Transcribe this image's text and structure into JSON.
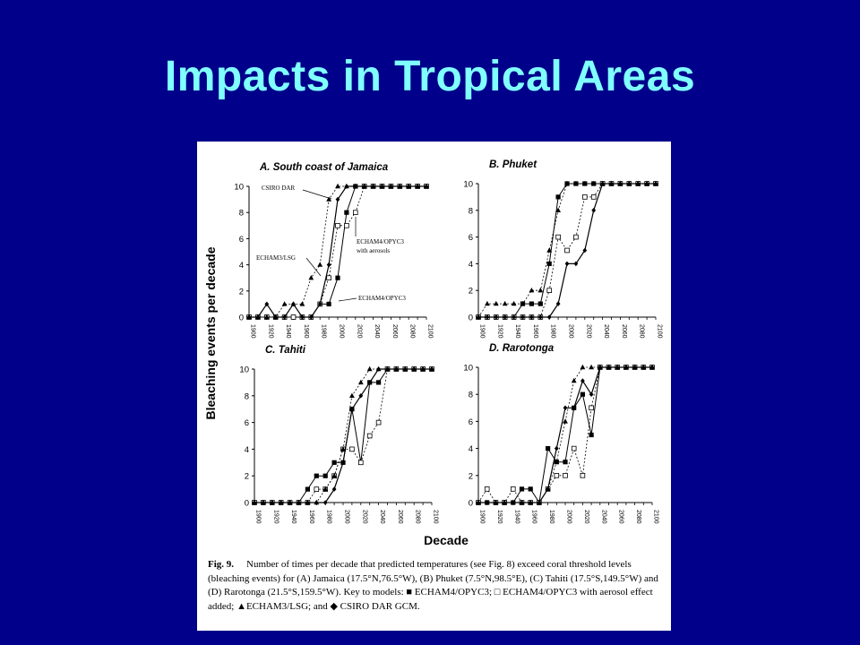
{
  "slide": {
    "title": "Impacts in Tropical Areas"
  },
  "figure": {
    "y_axis_title": "Bleaching events per decade",
    "x_axis_title": "Decade",
    "caption": {
      "label": "Fig. 9.",
      "text": "Number of times per decade that predicted temperatures (see Fig. 8) exceed coral threshold levels (bleaching events) for (A) Jamaica (17.5°N,76.5°W), (B) Phuket (7.5°N,98.5°E), (C) Tahiti (17.5°S,149.5°W) and (D) Rarotonga (21.5°S,159.5°W). Key to models: ■ ECHAM4/OPYC3; □ ECHAM4/OPYC3 with aerosol effect added; ▲ECHAM3/LSG; and ◆ CSIRO DAR GCM."
    }
  },
  "chart_data": [
    {
      "type": "line",
      "title": "A. South coast of Jamaica",
      "x": [
        1900,
        1910,
        1920,
        1930,
        1940,
        1950,
        1960,
        1970,
        1980,
        1990,
        2000,
        2010,
        2020,
        2030,
        2040,
        2050,
        2060,
        2070,
        2080,
        2090,
        2100
      ],
      "xticks": [
        "1900",
        "1920",
        "1940",
        "1960",
        "1980",
        "2000",
        "2020",
        "2040",
        "2060",
        "2080",
        "2100"
      ],
      "yticks": [
        "0",
        "2",
        "4",
        "6",
        "8",
        "10"
      ],
      "ylim": [
        0,
        10
      ],
      "xlim": [
        1900,
        2100
      ],
      "annotations": [
        "CSIRO DAR",
        "ECHAM3/LSG",
        "ECHAM4/OPYC3\nwith aerosols",
        "ECHAM4/OPYC3"
      ],
      "series": [
        {
          "name": "ECHAM4/OPYC3",
          "marker": "square-filled",
          "values": [
            0,
            0,
            0,
            0,
            0,
            0,
            0,
            0,
            1,
            1,
            3,
            8,
            10,
            10,
            10,
            10,
            10,
            10,
            10,
            10,
            10
          ]
        },
        {
          "name": "ECHAM4/OPYC3 with aerosols",
          "marker": "square-open",
          "values": [
            0,
            0,
            0,
            0,
            0,
            0,
            0,
            0,
            1,
            3,
            7,
            7,
            8,
            10,
            10,
            10,
            10,
            10,
            10,
            10,
            10
          ]
        },
        {
          "name": "ECHAM3/LSG",
          "marker": "triangle",
          "values": [
            0,
            0,
            0,
            0,
            1,
            1,
            1,
            3,
            4,
            9,
            10,
            10,
            10,
            10,
            10,
            10,
            10,
            10,
            10,
            10,
            10
          ]
        },
        {
          "name": "CSIRO DAR",
          "marker": "diamond",
          "values": [
            0,
            0,
            1,
            0,
            0,
            1,
            0,
            0,
            1,
            4,
            9,
            10,
            10,
            10,
            10,
            10,
            10,
            10,
            10,
            10,
            10
          ]
        }
      ]
    },
    {
      "type": "line",
      "title": "B. Phuket",
      "x": [
        1900,
        1910,
        1920,
        1930,
        1940,
        1950,
        1960,
        1970,
        1980,
        1990,
        2000,
        2010,
        2020,
        2030,
        2040,
        2050,
        2060,
        2070,
        2080,
        2090,
        2100
      ],
      "xticks": [
        "1900",
        "1920",
        "1940",
        "1960",
        "1980",
        "2000",
        "2020",
        "2040",
        "2060",
        "2080",
        "2100"
      ],
      "yticks": [
        "0",
        "2",
        "4",
        "6",
        "8",
        "10"
      ],
      "ylim": [
        0,
        10
      ],
      "xlim": [
        1900,
        2100
      ],
      "series": [
        {
          "name": "ECHAM4/OPYC3",
          "marker": "square-filled",
          "values": [
            0,
            0,
            0,
            0,
            0,
            1,
            1,
            1,
            4,
            9,
            10,
            10,
            10,
            10,
            10,
            10,
            10,
            10,
            10,
            10,
            10
          ]
        },
        {
          "name": "ECHAM4/OPYC3 with aerosols",
          "marker": "square-open",
          "values": [
            0,
            0,
            0,
            0,
            0,
            0,
            0,
            0,
            2,
            6,
            5,
            6,
            9,
            9,
            10,
            10,
            10,
            10,
            10,
            10,
            10
          ]
        },
        {
          "name": "ECHAM3/LSG",
          "marker": "triangle",
          "values": [
            0,
            1,
            1,
            1,
            1,
            1,
            2,
            2,
            5,
            8,
            10,
            10,
            10,
            10,
            10,
            10,
            10,
            10,
            10,
            10,
            10
          ]
        },
        {
          "name": "CSIRO DAR",
          "marker": "diamond",
          "values": [
            0,
            0,
            0,
            0,
            0,
            0,
            0,
            0,
            0,
            1,
            4,
            4,
            5,
            8,
            10,
            10,
            10,
            10,
            10,
            10,
            10
          ]
        }
      ]
    },
    {
      "type": "line",
      "title": "C. Tahiti",
      "x": [
        1900,
        1910,
        1920,
        1930,
        1940,
        1950,
        1960,
        1970,
        1980,
        1990,
        2000,
        2010,
        2020,
        2030,
        2040,
        2050,
        2060,
        2070,
        2080,
        2090,
        2100
      ],
      "xticks": [
        "1900",
        "1920",
        "1940",
        "1960",
        "1980",
        "2000",
        "2020",
        "2040",
        "2060",
        "2080",
        "2100"
      ],
      "yticks": [
        "0",
        "2",
        "4",
        "6",
        "8",
        "10"
      ],
      "ylim": [
        0,
        10
      ],
      "xlim": [
        1900,
        2100
      ],
      "series": [
        {
          "name": "ECHAM4/OPYC3",
          "marker": "square-filled",
          "values": [
            0,
            0,
            0,
            0,
            0,
            0,
            1,
            2,
            2,
            3,
            3,
            7,
            3,
            9,
            9,
            10,
            10,
            10,
            10,
            10,
            10
          ]
        },
        {
          "name": "ECHAM4/OPYC3 with aerosols",
          "marker": "square-open",
          "values": [
            0,
            0,
            0,
            0,
            0,
            0,
            0,
            1,
            1,
            2,
            4,
            4,
            3,
            5,
            6,
            10,
            10,
            10,
            10,
            10,
            10
          ]
        },
        {
          "name": "ECHAM3/LSG",
          "marker": "triangle",
          "values": [
            0,
            0,
            0,
            0,
            0,
            0,
            0,
            0,
            1,
            2,
            4,
            8,
            9,
            10,
            10,
            10,
            10,
            10,
            10,
            10,
            10
          ]
        },
        {
          "name": "CSIRO DAR",
          "marker": "diamond",
          "values": [
            0,
            0,
            0,
            0,
            0,
            0,
            0,
            0,
            0,
            1,
            3,
            7,
            8,
            9,
            10,
            10,
            10,
            10,
            10,
            10,
            10
          ]
        }
      ]
    },
    {
      "type": "line",
      "title": "D. Rarotonga",
      "x": [
        1900,
        1910,
        1920,
        1930,
        1940,
        1950,
        1960,
        1970,
        1980,
        1990,
        2000,
        2010,
        2020,
        2030,
        2040,
        2050,
        2060,
        2070,
        2080,
        2090,
        2100
      ],
      "xticks": [
        "1900",
        "1920",
        "1940",
        "1960",
        "1980",
        "2000",
        "2020",
        "2040",
        "2060",
        "2080",
        "2100"
      ],
      "yticks": [
        "0",
        "2",
        "4",
        "6",
        "8",
        "10"
      ],
      "ylim": [
        0,
        10
      ],
      "xlim": [
        1900,
        2100
      ],
      "series": [
        {
          "name": "ECHAM4/OPYC3",
          "marker": "square-filled",
          "values": [
            0,
            0,
            0,
            0,
            0,
            1,
            1,
            0,
            4,
            3,
            3,
            7,
            8,
            5,
            10,
            10,
            10,
            10,
            10,
            10,
            10
          ]
        },
        {
          "name": "ECHAM4/OPYC3 with aerosols",
          "marker": "square-open",
          "values": [
            0,
            1,
            0,
            0,
            1,
            0,
            0,
            0,
            1,
            2,
            2,
            4,
            2,
            7,
            10,
            10,
            10,
            10,
            10,
            10,
            10
          ]
        },
        {
          "name": "ECHAM3/LSG",
          "marker": "triangle",
          "values": [
            0,
            0,
            0,
            0,
            0,
            0,
            0,
            0,
            1,
            3,
            6,
            9,
            10,
            10,
            10,
            10,
            10,
            10,
            10,
            10,
            10
          ]
        },
        {
          "name": "CSIRO DAR",
          "marker": "diamond",
          "values": [
            0,
            0,
            0,
            0,
            0,
            0,
            0,
            0,
            1,
            4,
            7,
            7,
            9,
            8,
            10,
            10,
            10,
            10,
            10,
            10,
            10
          ]
        }
      ]
    }
  ]
}
